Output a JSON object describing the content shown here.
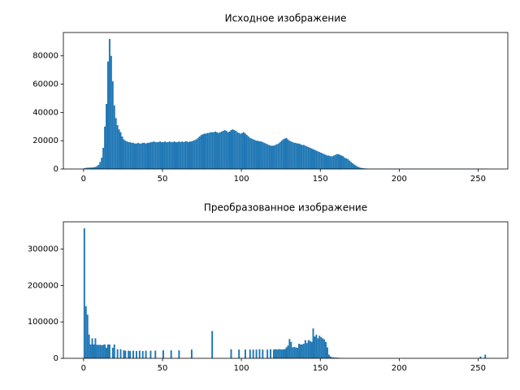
{
  "chart_data": [
    {
      "type": "histogram",
      "title": "Исходное изображение",
      "color": "#1f77b4",
      "bins": [
        0,
        1,
        2,
        3,
        4,
        5,
        6,
        7,
        8,
        9,
        10,
        11,
        12,
        13,
        14,
        15,
        16,
        17,
        18,
        19,
        20,
        21,
        22,
        23,
        24,
        25,
        26,
        27,
        28,
        29,
        30,
        31,
        32,
        33,
        34,
        35,
        36,
        37,
        38,
        39,
        40,
        41,
        42,
        43,
        44,
        45,
        46,
        47,
        48,
        49,
        50,
        51,
        52,
        53,
        54,
        55,
        56,
        57,
        58,
        59,
        60,
        61,
        62,
        63,
        64,
        65,
        66,
        67,
        68,
        69,
        70,
        71,
        72,
        73,
        74,
        75,
        76,
        77,
        78,
        79,
        80,
        81,
        82,
        83,
        84,
        85,
        86,
        87,
        88,
        89,
        90,
        91,
        92,
        93,
        94,
        95,
        96,
        97,
        98,
        99,
        100,
        101,
        102,
        103,
        104,
        105,
        106,
        107,
        108,
        109,
        110,
        111,
        112,
        113,
        114,
        115,
        116,
        117,
        118,
        119,
        120,
        121,
        122,
        123,
        124,
        125,
        126,
        127,
        128,
        129,
        130,
        131,
        132,
        133,
        134,
        135,
        136,
        137,
        138,
        139,
        140,
        141,
        142,
        143,
        144,
        145,
        146,
        147,
        148,
        149,
        150,
        151,
        152,
        153,
        154,
        155,
        156,
        157,
        158,
        159,
        160,
        161,
        162,
        163,
        164,
        165,
        166,
        167,
        168,
        169,
        170,
        171,
        172,
        173,
        174,
        175,
        176,
        177,
        178,
        179,
        180,
        181,
        182,
        183,
        184,
        185,
        186,
        187,
        188,
        189,
        190,
        191,
        192,
        193,
        194,
        195,
        196,
        197,
        198,
        199,
        200,
        201,
        202,
        203,
        204,
        205,
        206,
        207,
        208,
        209,
        210,
        211,
        212,
        213,
        214,
        215,
        216,
        217,
        218,
        219,
        220,
        221,
        222,
        223,
        224,
        225,
        226,
        227,
        228,
        229,
        230,
        231,
        232,
        233,
        234,
        235,
        236,
        237,
        238,
        239,
        240,
        241,
        242,
        243,
        244,
        245,
        246,
        247,
        248,
        249,
        250,
        251,
        252,
        253,
        254,
        255,
        256
      ],
      "values": [
        500,
        800,
        900,
        1000,
        1000,
        1100,
        1200,
        1500,
        2000,
        3000,
        5000,
        8000,
        15000,
        30000,
        46000,
        76000,
        91900,
        80000,
        62000,
        45000,
        36000,
        31000,
        28000,
        26000,
        23000,
        21000,
        20000,
        19500,
        19000,
        19000,
        18500,
        18500,
        18000,
        18000,
        18500,
        18000,
        18000,
        18500,
        18500,
        18000,
        18500,
        18500,
        19000,
        19000,
        19500,
        19000,
        19000,
        19000,
        19500,
        19000,
        19000,
        19500,
        19000,
        19000,
        19500,
        19000,
        19000,
        19500,
        19000,
        19000,
        19500,
        19000,
        19500,
        19000,
        19500,
        19500,
        19000,
        19500,
        19500,
        20000,
        20500,
        21000,
        22000,
        23000,
        24000,
        24500,
        25000,
        25000,
        25500,
        25500,
        26000,
        26000,
        26000,
        26500,
        26000,
        25500,
        26000,
        26500,
        27000,
        27500,
        27000,
        26000,
        26500,
        27500,
        28000,
        27500,
        27000,
        26000,
        25500,
        25000,
        25500,
        26000,
        25000,
        24000,
        23000,
        22000,
        21500,
        21000,
        20500,
        20000,
        20000,
        19500,
        19500,
        19000,
        18500,
        18000,
        17500,
        17000,
        16500,
        16500,
        16500,
        17000,
        17500,
        18000,
        19000,
        20000,
        21000,
        21500,
        22000,
        21000,
        20000,
        19500,
        19000,
        18500,
        18500,
        18000,
        18000,
        17500,
        17000,
        17000,
        16500,
        16000,
        15500,
        15000,
        14500,
        14000,
        13500,
        13000,
        12500,
        12000,
        11500,
        11000,
        10500,
        10000,
        9500,
        9500,
        9000,
        9000,
        9500,
        10000,
        10500,
        10500,
        10000,
        9500,
        9000,
        8000,
        7500,
        7000,
        6000,
        5000,
        4000,
        3200,
        2500,
        1800,
        1300,
        900,
        700,
        500,
        400,
        300,
        200,
        200,
        200,
        200,
        200,
        200,
        200,
        200,
        200,
        200,
        200,
        200,
        200,
        200,
        200,
        200,
        200,
        200,
        200,
        200,
        200,
        200,
        200,
        200,
        200,
        200,
        200,
        200,
        200,
        200,
        200,
        200,
        200,
        200,
        200,
        200,
        200,
        200,
        200,
        200,
        200,
        200,
        200,
        200,
        200,
        200,
        200,
        200,
        200,
        200,
        200,
        200,
        200,
        200,
        200,
        200,
        200,
        200,
        200,
        200,
        200,
        200,
        200,
        200,
        200,
        200,
        200,
        200,
        200,
        200,
        200,
        200,
        200,
        200,
        200,
        200
      ],
      "xlim": [
        -12.8,
        268.8
      ],
      "ylim": [
        0,
        96500
      ],
      "xticks": [
        0,
        50,
        100,
        150,
        200,
        250
      ],
      "yticks": [
        0,
        20000,
        40000,
        60000,
        80000
      ]
    },
    {
      "type": "histogram",
      "title": "Преобразованное изображение",
      "color": "#1f77b4",
      "bins": [
        0,
        1,
        2,
        3,
        4,
        5,
        6,
        7,
        8,
        9,
        10,
        11,
        12,
        13,
        14,
        15,
        16,
        17,
        18,
        19,
        20,
        21,
        22,
        23,
        24,
        25,
        26,
        27,
        28,
        29,
        30,
        31,
        32,
        33,
        34,
        35,
        36,
        37,
        38,
        39,
        40,
        41,
        42,
        43,
        44,
        45,
        46,
        47,
        48,
        49,
        50,
        51,
        52,
        53,
        54,
        55,
        56,
        57,
        58,
        59,
        60,
        61,
        62,
        63,
        64,
        65,
        66,
        67,
        68,
        69,
        70,
        71,
        72,
        73,
        74,
        75,
        76,
        77,
        78,
        79,
        80,
        81,
        82,
        83,
        84,
        85,
        86,
        87,
        88,
        89,
        90,
        91,
        92,
        93,
        94,
        95,
        96,
        97,
        98,
        99,
        100,
        101,
        102,
        103,
        104,
        105,
        106,
        107,
        108,
        109,
        110,
        111,
        112,
        113,
        114,
        115,
        116,
        117,
        118,
        119,
        120,
        121,
        122,
        123,
        124,
        125,
        126,
        127,
        128,
        129,
        130,
        131,
        132,
        133,
        134,
        135,
        136,
        137,
        138,
        139,
        140,
        141,
        142,
        143,
        144,
        145,
        146,
        147,
        148,
        149,
        150,
        151,
        152,
        153,
        154,
        155,
        156,
        157,
        158,
        159,
        160,
        161,
        162,
        163,
        164,
        165,
        166,
        167,
        168,
        169,
        170,
        171,
        172,
        173,
        174,
        175,
        176,
        177,
        178,
        179,
        180,
        181,
        182,
        183,
        184,
        185,
        186,
        187,
        188,
        189,
        190,
        191,
        192,
        193,
        194,
        195,
        196,
        197,
        198,
        199,
        200,
        201,
        202,
        203,
        204,
        205,
        206,
        207,
        208,
        209,
        210,
        211,
        212,
        213,
        214,
        215,
        216,
        217,
        218,
        219,
        220,
        221,
        222,
        223,
        224,
        225,
        226,
        227,
        228,
        229,
        230,
        231,
        232,
        233,
        234,
        235,
        236,
        237,
        238,
        239,
        240,
        241,
        242,
        243,
        244,
        245,
        246,
        247,
        248,
        249,
        250,
        251,
        252,
        253,
        254,
        255,
        256
      ],
      "values": [
        357000,
        143000,
        120000,
        65000,
        38000,
        55000,
        38000,
        55000,
        37000,
        37000,
        37000,
        36000,
        37000,
        38000,
        29000,
        38000,
        38000,
        0,
        29000,
        38000,
        0,
        25000,
        0,
        25000,
        0,
        22000,
        21000,
        0,
        21000,
        20000,
        0,
        21000,
        0,
        20000,
        0,
        21000,
        0,
        20000,
        0,
        21000,
        0,
        0,
        21000,
        0,
        0,
        21000,
        0,
        0,
        0,
        0,
        22000,
        0,
        0,
        0,
        0,
        22000,
        0,
        0,
        0,
        0,
        22000,
        0,
        0,
        0,
        0,
        0,
        0,
        0,
        24000,
        0,
        0,
        0,
        0,
        0,
        0,
        0,
        0,
        0,
        0,
        0,
        0,
        75000,
        0,
        0,
        0,
        0,
        0,
        0,
        0,
        0,
        0,
        0,
        0,
        25000,
        0,
        0,
        0,
        0,
        24000,
        0,
        0,
        0,
        24000,
        0,
        0,
        24000,
        0,
        24000,
        0,
        24000,
        0,
        25000,
        0,
        24000,
        0,
        0,
        24000,
        0,
        25000,
        0,
        24000,
        25000,
        24000,
        25000,
        25000,
        24000,
        25000,
        25000,
        30000,
        35000,
        53000,
        45000,
        30000,
        31000,
        30000,
        29000,
        40000,
        38000,
        38000,
        40000,
        50000,
        42000,
        50000,
        48000,
        45000,
        82000,
        60000,
        65000,
        55000,
        62000,
        58000,
        55000,
        52000,
        45000,
        30000,
        10000,
        5000,
        3000,
        2500,
        2000,
        2000,
        1500,
        1000,
        800,
        500,
        300,
        0,
        0,
        0,
        0,
        0,
        0,
        0,
        0,
        0,
        0,
        0,
        0,
        0,
        0,
        0,
        0,
        0,
        0,
        0,
        0,
        0,
        0,
        0,
        0,
        0,
        0,
        0,
        0,
        0,
        0,
        0,
        0,
        0,
        0,
        0,
        0,
        0,
        0,
        0,
        0,
        0,
        0,
        0,
        0,
        0,
        0,
        0,
        0,
        0,
        0,
        0,
        0,
        0,
        0,
        0,
        0,
        0,
        0,
        0,
        0,
        0,
        0,
        0,
        0,
        0,
        0,
        0,
        0,
        0,
        0,
        0,
        0,
        0,
        0,
        0,
        0,
        0,
        0,
        0,
        0,
        0,
        0,
        0,
        0,
        0,
        5000,
        0,
        0,
        10000,
        0
      ],
      "xlim": [
        -12.8,
        268.8
      ],
      "ylim": [
        0,
        375000
      ],
      "xticks": [
        0,
        50,
        100,
        150,
        200,
        250
      ],
      "yticks": [
        0,
        100000,
        200000,
        300000
      ]
    }
  ]
}
